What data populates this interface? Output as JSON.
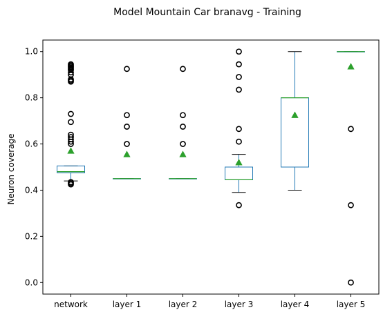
{
  "chart_data": {
    "type": "box",
    "title": "Model Mountain Car branavg - Training",
    "xlabel": "",
    "ylabel": "Neuron coverage",
    "ylim": [
      -0.05,
      1.05
    ],
    "yticks": [
      0.0,
      0.2,
      0.4,
      0.6,
      0.8,
      1.0
    ],
    "ytick_labels": [
      "0.0",
      "0.2",
      "0.4",
      "0.6",
      "0.8",
      "1.0"
    ],
    "grid": false,
    "legend": "none",
    "colors": {
      "box": "#1f77b4",
      "median": "#2ca02c",
      "mean": "#2ca02c",
      "whisker": "#000000",
      "flier": "#000000"
    },
    "categories": [
      "network",
      "layer 1",
      "layer 2",
      "layer 3",
      "layer 4",
      "layer 5"
    ],
    "boxes": [
      {
        "name": "network",
        "whislo": 0.44,
        "q1": 0.475,
        "med": 0.48,
        "q3": 0.505,
        "whishi": 0.505,
        "mean": 0.57,
        "fliers": [
          0.425,
          0.43,
          0.435,
          0.6,
          0.61,
          0.62,
          0.63,
          0.64,
          0.695,
          0.73,
          0.87,
          0.875,
          0.88,
          0.9,
          0.91,
          0.92,
          0.925,
          0.93,
          0.935,
          0.94,
          0.945
        ]
      },
      {
        "name": "layer 1",
        "whislo": 0.45,
        "q1": 0.45,
        "med": 0.45,
        "q3": 0.45,
        "whishi": 0.45,
        "mean": 0.555,
        "fliers": [
          0.6,
          0.675,
          0.725,
          0.925
        ]
      },
      {
        "name": "layer 2",
        "whislo": 0.45,
        "q1": 0.45,
        "med": 0.45,
        "q3": 0.45,
        "whishi": 0.45,
        "mean": 0.555,
        "fliers": [
          0.6,
          0.675,
          0.725,
          0.925
        ]
      },
      {
        "name": "layer 3",
        "whislo": 0.39,
        "q1": 0.445,
        "med": 0.445,
        "q3": 0.5,
        "whishi": 0.555,
        "mean": 0.52,
        "fliers": [
          0.335,
          0.61,
          0.665,
          0.835,
          0.89,
          0.945,
          1.0
        ]
      },
      {
        "name": "layer 4",
        "whislo": 0.4,
        "q1": 0.5,
        "med": 0.8,
        "q3": 0.8,
        "whishi": 1.0,
        "mean": 0.725,
        "fliers": []
      },
      {
        "name": "layer 5",
        "whislo": 1.0,
        "q1": 1.0,
        "med": 1.0,
        "q3": 1.0,
        "whishi": 1.0,
        "mean": 0.935,
        "fliers": [
          0.0,
          0.335,
          0.665
        ]
      }
    ]
  }
}
